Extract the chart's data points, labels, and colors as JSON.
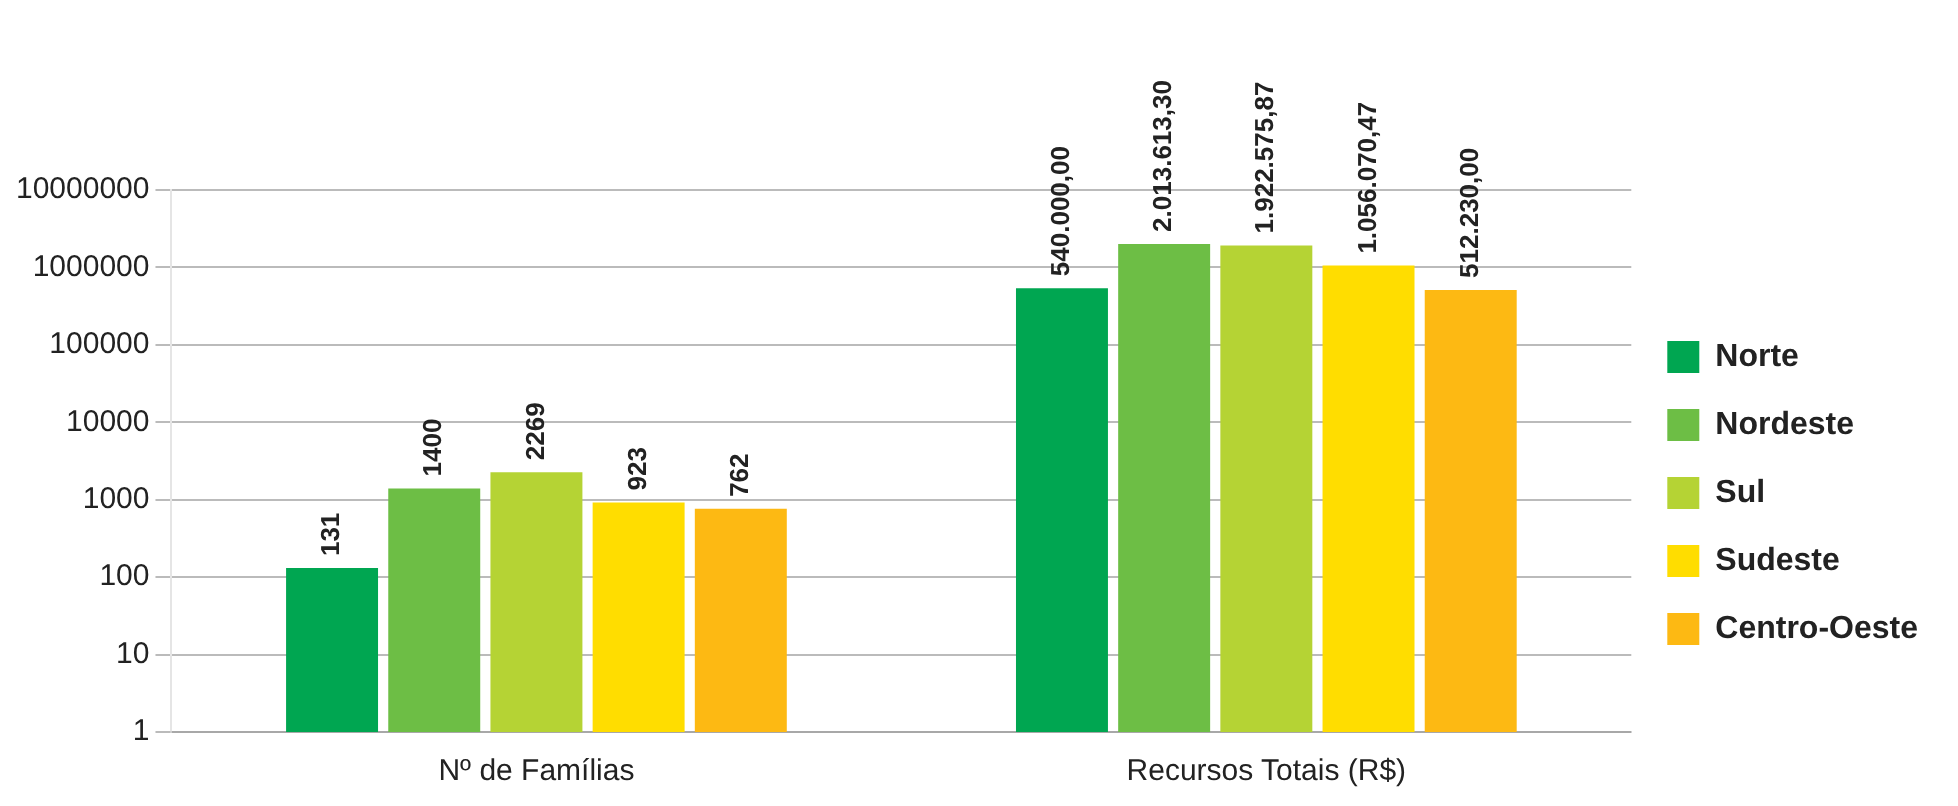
{
  "chart_data": {
    "type": "bar",
    "categories": [
      "Nº de Famílias",
      "Recursos Totais (R$)"
    ],
    "series": [
      {
        "name": "Norte",
        "color": "#00a651",
        "values": [
          131,
          540000
        ],
        "value_labels": [
          "131",
          "540.000,00"
        ]
      },
      {
        "name": "Nordeste",
        "color": "#6dbe45",
        "values": [
          1400,
          2013613.3
        ],
        "value_labels": [
          "1400",
          "2.013.613,30"
        ]
      },
      {
        "name": "Sul",
        "color": "#b5d334",
        "values": [
          2269,
          1922575.87
        ],
        "value_labels": [
          "2269",
          "1.922.575,87"
        ]
      },
      {
        "name": "Sudeste",
        "color": "#ffdd00",
        "values": [
          923,
          1056070.47
        ],
        "value_labels": [
          "923",
          "1.056.070,47"
        ]
      },
      {
        "name": "Centro-Oeste",
        "color": "#fdb913",
        "values": [
          762,
          512230
        ],
        "value_labels": [
          "762",
          "512.230,00"
        ]
      }
    ],
    "log": "y",
    "ylim": [
      1,
      10000000
    ],
    "yticks": [
      1,
      10,
      100,
      1000,
      10000,
      100000,
      1000000,
      10000000
    ],
    "grid": "y",
    "legend": "right"
  }
}
